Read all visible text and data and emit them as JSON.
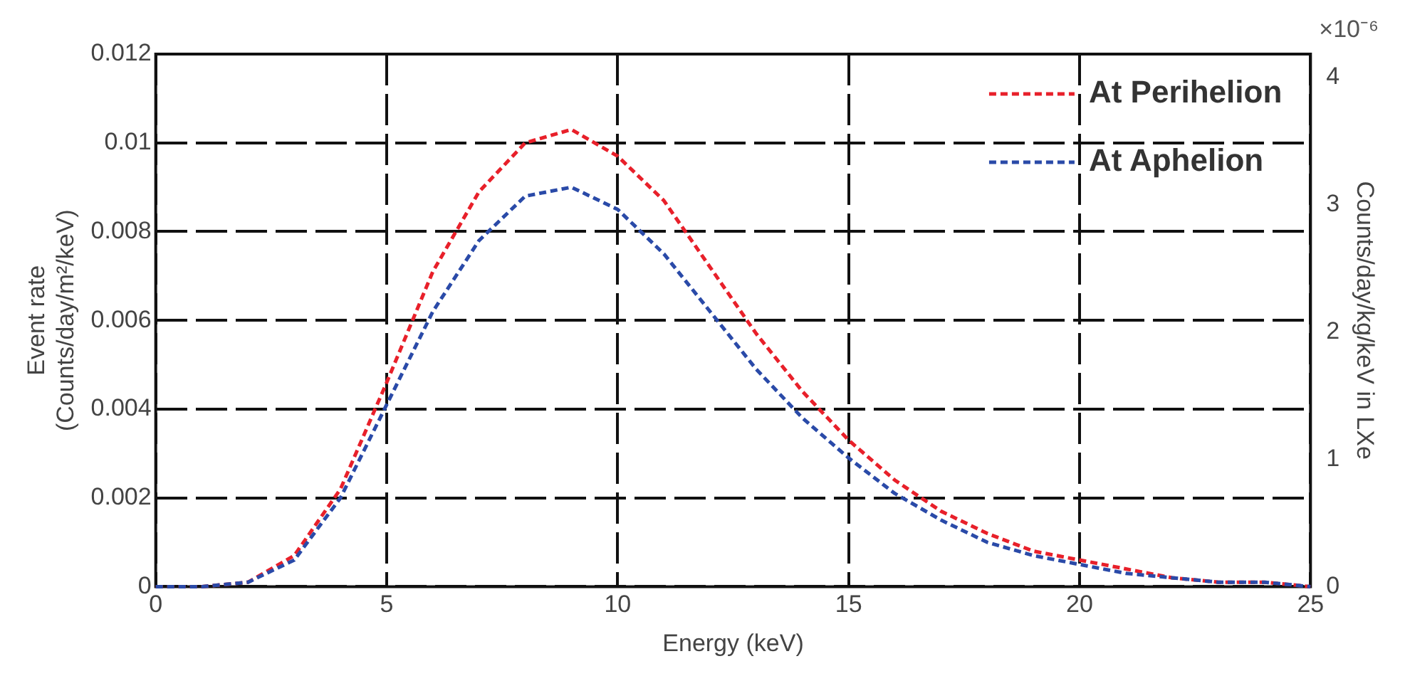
{
  "chart_data": {
    "type": "line",
    "xlabel": "Energy (keV)",
    "ylabel": "Event rate\n(Counts/day/m²/keV)",
    "y2label": "Counts/day/kg/keV in LXe",
    "x": [
      0,
      1,
      2,
      3,
      4,
      5,
      6,
      7,
      8,
      9,
      10,
      11,
      12,
      13,
      14,
      15,
      16,
      17,
      18,
      19,
      20,
      21,
      22,
      23,
      24,
      25
    ],
    "series": [
      {
        "name": "At Perihelion",
        "color": "#e8202a",
        "line_style": "dashed",
        "values": [
          0,
          0,
          0.0001,
          0.0007,
          0.0022,
          0.0046,
          0.0071,
          0.0089,
          0.01,
          0.0103,
          0.0097,
          0.0087,
          0.0072,
          0.0057,
          0.0044,
          0.0033,
          0.0024,
          0.0017,
          0.0012,
          0.0008,
          0.0006,
          0.0004,
          0.0002,
          0.0001,
          0.0001,
          0
        ]
      },
      {
        "name": "At Aphelion",
        "color": "#2a4aa8",
        "line_style": "dashed",
        "values": [
          0,
          0,
          0.0001,
          0.0006,
          0.002,
          0.0041,
          0.0062,
          0.0078,
          0.0088,
          0.009,
          0.0085,
          0.0075,
          0.0062,
          0.0049,
          0.0038,
          0.0029,
          0.0021,
          0.0015,
          0.001,
          0.0007,
          0.0005,
          0.0003,
          0.0002,
          0.0001,
          0.0001,
          0
        ]
      }
    ],
    "xlim": [
      0,
      25
    ],
    "xticks": [
      0,
      5,
      10,
      15,
      20,
      25
    ],
    "ylim": [
      0,
      0.012
    ],
    "yticks": [
      0,
      0.002,
      0.004,
      0.006,
      0.008,
      0.01,
      0.012
    ],
    "y2lim": [
      0,
      4.18
    ],
    "y2ticks": [
      0,
      1,
      2,
      3,
      4
    ],
    "annotations": [
      "×10⁻⁶"
    ],
    "grid": true,
    "legend": "top right",
    "marker": "none"
  }
}
